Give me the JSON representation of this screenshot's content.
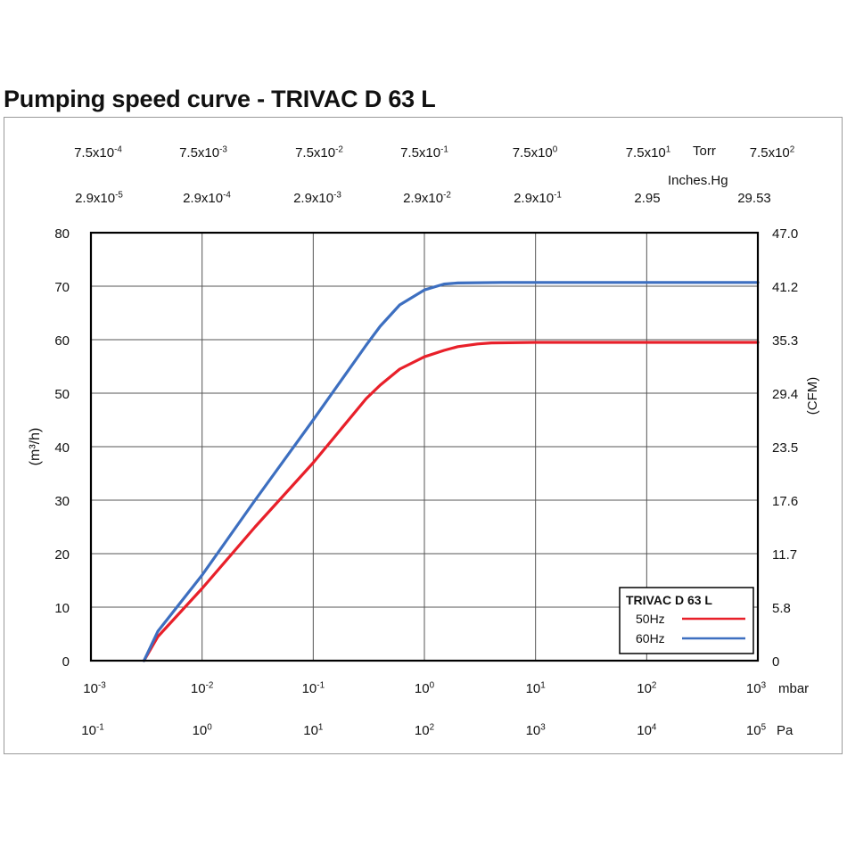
{
  "title": "Pumping speed curve - TRIVAC D 63 L",
  "chart_data": {
    "type": "line",
    "title": "Pumping speed curve - TRIVAC D 63 L",
    "x_scale": "log",
    "xlim": [
      0.001,
      1000
    ],
    "xlabel": "mbar",
    "ylim": [
      0,
      80
    ],
    "ylabel": "(m³/h)",
    "y2label": "(CFM)",
    "grid": true,
    "legend": {
      "title": "TRIVAC D 63 L",
      "placement": "bottom-right"
    },
    "x_ticks": [
      {
        "base": "10",
        "exp": "-3"
      },
      {
        "base": "10",
        "exp": "-2"
      },
      {
        "base": "10",
        "exp": "-1"
      },
      {
        "base": "10",
        "exp": "0"
      },
      {
        "base": "10",
        "exp": "1"
      },
      {
        "base": "10",
        "exp": "2"
      },
      {
        "base": "10",
        "exp": "3"
      }
    ],
    "pa_label": "Pa",
    "pa_ticks": [
      {
        "base": "10",
        "exp": "-1"
      },
      {
        "base": "10",
        "exp": "0"
      },
      {
        "base": "10",
        "exp": "1"
      },
      {
        "base": "10",
        "exp": "2"
      },
      {
        "base": "10",
        "exp": "3"
      },
      {
        "base": "10",
        "exp": "4"
      },
      {
        "base": "10",
        "exp": "5"
      }
    ],
    "torr_label": "Torr",
    "torr_ticks": [
      {
        "base": "7.5x10",
        "exp": "-4"
      },
      {
        "base": "7.5x10",
        "exp": "-3"
      },
      {
        "base": "7.5x10",
        "exp": "-2"
      },
      {
        "base": "7.5x10",
        "exp": "-1"
      },
      {
        "base": "7.5x10",
        "exp": "0"
      },
      {
        "base": "7.5x10",
        "exp": "1"
      },
      {
        "base": "7.5x10",
        "exp": "2"
      }
    ],
    "inhg_label": "Inches.Hg",
    "inhg_ticks": [
      {
        "base": "2.9x10",
        "exp": "-5"
      },
      {
        "base": "2.9x10",
        "exp": "-4"
      },
      {
        "base": "2.9x10",
        "exp": "-3"
      },
      {
        "base": "2.9x10",
        "exp": "-2"
      },
      {
        "base": "2.9x10",
        "exp": "-1"
      },
      {
        "base": "2.95",
        "exp": ""
      },
      {
        "base": "29.53",
        "exp": ""
      }
    ],
    "y_ticks": [
      "0",
      "10",
      "20",
      "30",
      "40",
      "50",
      "60",
      "70",
      "80"
    ],
    "y2_ticks": [
      "0",
      "5.8",
      "11.7",
      "17.6",
      "23.5",
      "29.4",
      "35.3",
      "41.2",
      "47.0"
    ],
    "series": [
      {
        "name": "50Hz",
        "color": "#e8202a",
        "points": [
          [
            0.003,
            0
          ],
          [
            0.004,
            4.5
          ],
          [
            0.01,
            13.5
          ],
          [
            0.03,
            25
          ],
          [
            0.1,
            37
          ],
          [
            0.3,
            49
          ],
          [
            0.4,
            51.5
          ],
          [
            0.6,
            54.5
          ],
          [
            1,
            56.8
          ],
          [
            1.5,
            58
          ],
          [
            2,
            58.7
          ],
          [
            3,
            59.2
          ],
          [
            4,
            59.4
          ],
          [
            10,
            59.5
          ],
          [
            1000,
            59.5
          ]
        ]
      },
      {
        "name": "60Hz",
        "color": "#3d6fc0",
        "points": [
          [
            0.003,
            0
          ],
          [
            0.004,
            5.5
          ],
          [
            0.01,
            16
          ],
          [
            0.03,
            30
          ],
          [
            0.1,
            45
          ],
          [
            0.3,
            59
          ],
          [
            0.4,
            62.5
          ],
          [
            0.6,
            66.5
          ],
          [
            1,
            69.3
          ],
          [
            1.5,
            70.4
          ],
          [
            2,
            70.6
          ],
          [
            5,
            70.7
          ],
          [
            1000,
            70.7
          ]
        ]
      }
    ]
  }
}
